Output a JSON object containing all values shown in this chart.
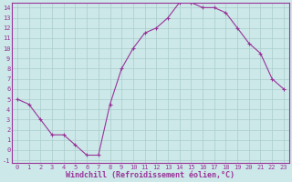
{
  "x": [
    0,
    1,
    2,
    3,
    4,
    5,
    6,
    7,
    8,
    9,
    10,
    11,
    12,
    13,
    14,
    15,
    16,
    17,
    18,
    19,
    20,
    21,
    22,
    23
  ],
  "y": [
    5.0,
    4.5,
    3.0,
    1.5,
    1.5,
    0.5,
    -0.5,
    -0.5,
    4.5,
    8.0,
    10.0,
    11.5,
    12.0,
    13.0,
    14.5,
    14.5,
    14.0,
    14.0,
    13.5,
    12.0,
    10.5,
    9.5,
    7.0,
    6.0
  ],
  "line_color": "#993399",
  "marker": "+",
  "marker_size": 3,
  "marker_lw": 0.8,
  "line_width": 0.8,
  "bg_color": "#cce8e8",
  "grid_color": "#aacccc",
  "xlabel": "Windchill (Refroidissement éolien,°C)",
  "xlabel_color": "#993399",
  "tick_color": "#993399",
  "spine_color": "#993399",
  "ylim_min": -1,
  "ylim_max": 14,
  "xlim_min": 0,
  "xlim_max": 23,
  "yticks": [
    -1,
    0,
    1,
    2,
    3,
    4,
    5,
    6,
    7,
    8,
    9,
    10,
    11,
    12,
    13,
    14
  ],
  "xticks": [
    0,
    1,
    2,
    3,
    4,
    5,
    6,
    7,
    8,
    9,
    10,
    11,
    12,
    13,
    14,
    15,
    16,
    17,
    18,
    19,
    20,
    21,
    22,
    23
  ],
  "tick_fontsize": 5,
  "xlabel_fontsize": 6,
  "fig_width": 3.2,
  "fig_height": 2.0,
  "dpi": 100
}
